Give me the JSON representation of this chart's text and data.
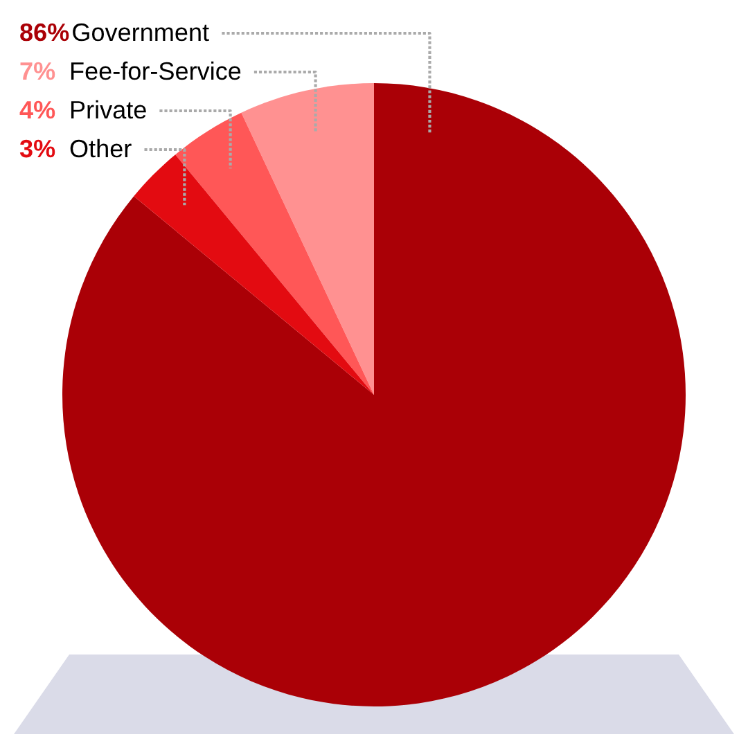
{
  "chart_data": {
    "type": "pie",
    "categories": [
      "Government",
      "Fee-for-Service",
      "Private",
      "Other"
    ],
    "values": [
      86,
      7,
      4,
      3
    ],
    "colors": [
      "#aa0006",
      "#ff9191",
      "#ff5757",
      "#e30b11"
    ],
    "value_labels": [
      "86%",
      "7%",
      "4%",
      "3%"
    ]
  }
}
